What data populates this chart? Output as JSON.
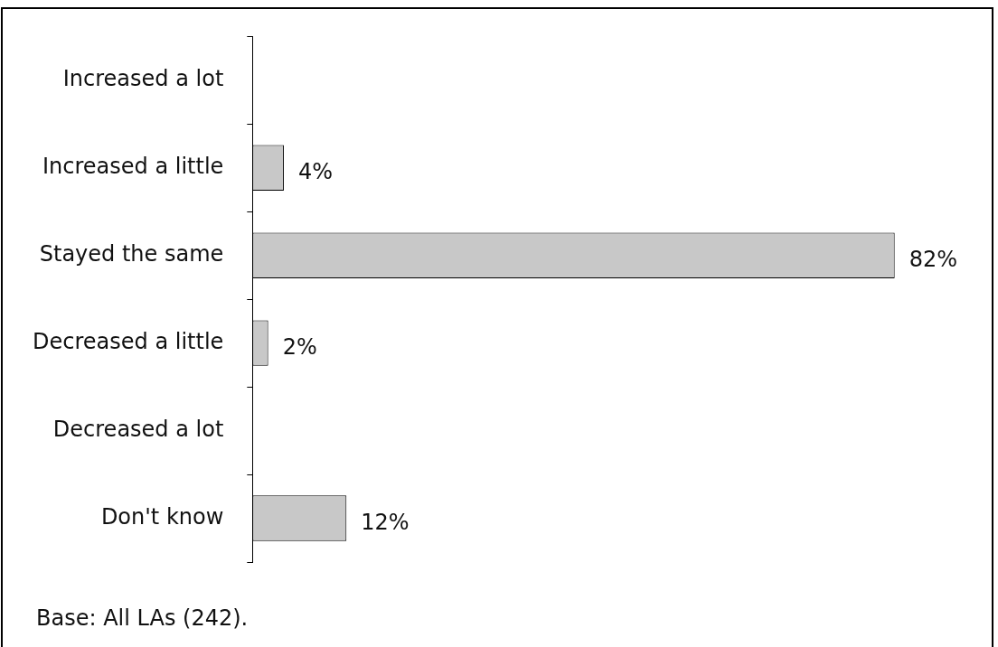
{
  "chart_data": {
    "type": "bar",
    "orientation": "horizontal",
    "categories": [
      "Increased a lot",
      "Increased a little",
      "Stayed the same",
      "Decreased a little",
      "Decreased a lot",
      "Don't know"
    ],
    "values": [
      0,
      4,
      82,
      2,
      0,
      12
    ],
    "value_labels": [
      null,
      "4%",
      "82%",
      "2%",
      null,
      "12%"
    ],
    "color": "#c8c8c8",
    "grid": false,
    "legend": false,
    "tick_labels": "y",
    "annotations": [
      "Base: All LAs (242)."
    ]
  }
}
